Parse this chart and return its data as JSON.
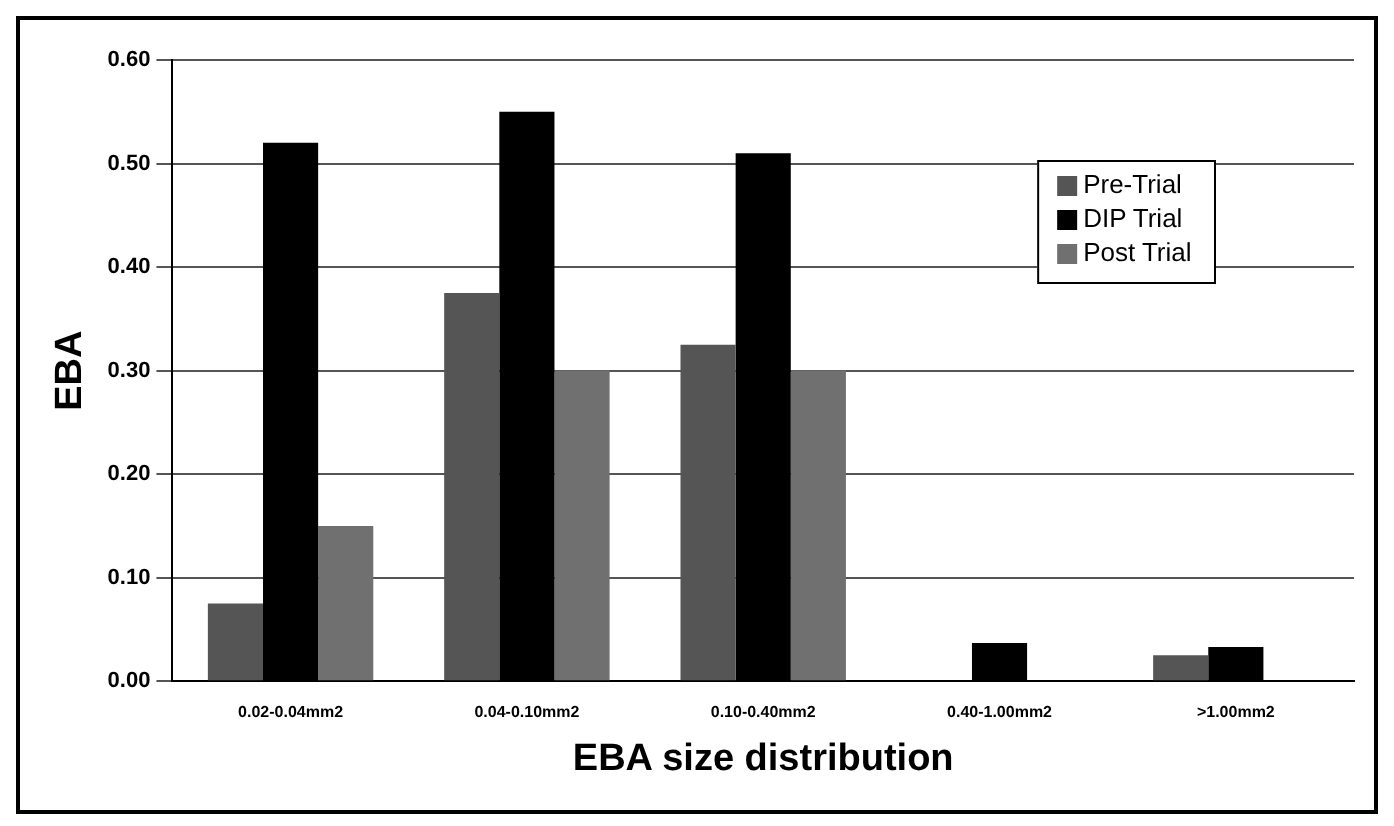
{
  "chart_data": {
    "type": "bar",
    "xlabel": "EBA size distribution",
    "ylabel": "EBA",
    "categories": [
      "0.02-0.04mm2",
      "0.04-0.10mm2",
      "0.10-0.40mm2",
      "0.40-1.00mm2",
      ">1.00mm2"
    ],
    "series": [
      {
        "name": "Pre-Trial",
        "color": "#555555",
        "values": [
          0.075,
          0.375,
          0.325,
          null,
          0.025
        ]
      },
      {
        "name": "DIP Trial",
        "color": "#000000",
        "values": [
          0.52,
          0.55,
          0.51,
          0.037,
          0.033
        ]
      },
      {
        "name": "Post Trial",
        "color": "#707070",
        "values": [
          0.15,
          0.3,
          0.3,
          null,
          null
        ]
      }
    ],
    "ylim": [
      0,
      0.6
    ],
    "yticks": [
      {
        "value": 0,
        "label": "0.00"
      },
      {
        "value": 0.1,
        "label": "0.10"
      },
      {
        "value": 0.2,
        "label": "0.20"
      },
      {
        "value": 0.3,
        "label": "0.30"
      },
      {
        "value": 0.4,
        "label": "0.40"
      },
      {
        "value": 0.5,
        "label": "0.50"
      },
      {
        "value": 0.6,
        "label": "0.60"
      }
    ],
    "grid": "y",
    "legend": "top right"
  }
}
